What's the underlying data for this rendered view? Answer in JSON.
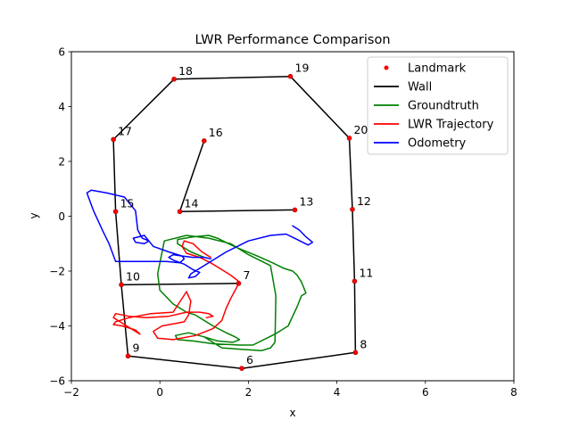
{
  "chart_data": {
    "type": "line",
    "title": "LWR Performance Comparison",
    "xlabel": "x",
    "ylabel": "y",
    "xlim": [
      -2,
      8
    ],
    "ylim": [
      -6,
      6
    ],
    "x_ticks": [
      "−2",
      "0",
      "2",
      "4",
      "6",
      "8"
    ],
    "y_ticks": [
      "−6",
      "−4",
      "−2",
      "0",
      "2",
      "4",
      "6"
    ],
    "grid": false,
    "legend_position": "top-right",
    "legend": [
      {
        "label": "Landmark",
        "color": "#ff0000",
        "kind": "marker"
      },
      {
        "label": "Wall",
        "color": "#000000",
        "kind": "line"
      },
      {
        "label": "Groundtruth",
        "color": "#008000",
        "kind": "line"
      },
      {
        "label": "LWR Trajectory",
        "color": "#ff0000",
        "kind": "line"
      },
      {
        "label": "Odometry",
        "color": "#0000ff",
        "kind": "line"
      }
    ],
    "landmarks": [
      {
        "id": "6",
        "x": 1.85,
        "y": -5.55
      },
      {
        "id": "7",
        "x": 1.78,
        "y": -2.45
      },
      {
        "id": "8",
        "x": 4.42,
        "y": -4.97
      },
      {
        "id": "9",
        "x": -0.72,
        "y": -5.1
      },
      {
        "id": "10",
        "x": -0.87,
        "y": -2.5
      },
      {
        "id": "11",
        "x": 4.4,
        "y": -2.37
      },
      {
        "id": "12",
        "x": 4.35,
        "y": 0.25
      },
      {
        "id": "13",
        "x": 3.05,
        "y": 0.23
      },
      {
        "id": "14",
        "x": 0.45,
        "y": 0.17
      },
      {
        "id": "15",
        "x": -1.0,
        "y": 0.17
      },
      {
        "id": "16",
        "x": 1.0,
        "y": 2.75
      },
      {
        "id": "17",
        "x": -1.05,
        "y": 2.8
      },
      {
        "id": "18",
        "x": 0.32,
        "y": 5.0
      },
      {
        "id": "19",
        "x": 2.95,
        "y": 5.1
      },
      {
        "id": "20",
        "x": 4.28,
        "y": 2.85
      }
    ],
    "walls": [
      [
        "17",
        "18",
        "19",
        "20",
        "12",
        "11",
        "8",
        "6",
        "9",
        "10",
        "15",
        "17"
      ],
      [
        "14",
        "16"
      ],
      [
        "14",
        "13"
      ],
      [
        "10",
        "7"
      ]
    ],
    "series": [
      {
        "name": "Groundtruth",
        "color": "#008000",
        "x": [
          1.0,
          0.7,
          0.4,
          0.4,
          0.75,
          1.1,
          1.3,
          1.55,
          1.75,
          2.2,
          2.55,
          2.8,
          3.0,
          3.1,
          3.2,
          3.3,
          3.2,
          3.1,
          2.9,
          2.6,
          2.1,
          1.8,
          1.2,
          0.75,
          0.4,
          0.35,
          0.65,
          1.0,
          1.4,
          1.8,
          2.3,
          2.5,
          2.6,
          2.62,
          2.5,
          2.0,
          1.6,
          1.1,
          0.6,
          0.1,
          -0.05,
          0.0,
          0.3,
          0.6,
          0.8,
          1.0,
          1.2,
          1.5,
          1.7,
          1.8,
          1.65,
          1.3,
          1.0
        ],
        "y": [
          -1.5,
          -1.3,
          -1.0,
          -0.85,
          -0.75,
          -0.7,
          -0.8,
          -1.0,
          -1.15,
          -1.45,
          -1.7,
          -1.9,
          -2.0,
          -2.15,
          -2.4,
          -2.8,
          -2.9,
          -3.3,
          -4.0,
          -4.3,
          -4.7,
          -4.7,
          -4.65,
          -4.55,
          -4.5,
          -4.35,
          -4.25,
          -4.4,
          -4.8,
          -4.85,
          -4.9,
          -4.8,
          -4.6,
          -2.9,
          -1.8,
          -1.4,
          -1.0,
          -0.8,
          -0.7,
          -0.9,
          -2.1,
          -2.7,
          -3.2,
          -3.5,
          -3.6,
          -3.8,
          -4.0,
          -4.25,
          -4.4,
          -4.5,
          -4.6,
          -4.55,
          -4.4
        ]
      },
      {
        "name": "LWR Trajectory",
        "color": "#ff0000",
        "x": [
          1.15,
          0.95,
          0.75,
          0.55,
          0.5,
          0.6,
          0.9,
          1.15,
          1.35,
          1.6,
          1.8,
          1.75,
          1.6,
          1.5,
          1.4,
          1.2,
          0.8,
          0.3,
          -0.05,
          -0.15,
          0.05,
          0.4,
          0.55,
          0.65,
          0.7,
          0.6,
          0.3,
          -0.2,
          -0.7,
          -1.0,
          -1.05,
          -0.85,
          -0.55,
          -0.45,
          -0.6,
          -0.85,
          -1.05,
          -1.0,
          -0.7,
          -0.3,
          0.2,
          0.6,
          0.9,
          1.1,
          1.2,
          1.05
        ],
        "y": [
          -1.5,
          -1.3,
          -1.0,
          -0.9,
          -1.1,
          -1.35,
          -1.5,
          -1.7,
          -1.9,
          -2.15,
          -2.4,
          -2.55,
          -3.0,
          -3.35,
          -3.8,
          -4.1,
          -4.35,
          -4.5,
          -4.45,
          -4.2,
          -4.0,
          -3.9,
          -3.85,
          -3.6,
          -3.1,
          -2.75,
          -3.5,
          -3.55,
          -3.7,
          -3.85,
          -3.95,
          -4.0,
          -4.15,
          -4.3,
          -4.15,
          -3.9,
          -3.7,
          -3.55,
          -3.65,
          -3.7,
          -3.65,
          -3.5,
          -3.5,
          -3.55,
          -3.65,
          -3.7
        ]
      },
      {
        "name": "Odometry",
        "color": "#0000ff",
        "x": [
          3.0,
          3.15,
          3.3,
          3.45,
          3.35,
          3.1,
          2.85,
          2.5,
          2.0,
          1.5,
          1.0,
          0.7,
          0.65,
          0.8,
          0.9,
          0.75,
          0.55,
          0.3,
          0.2,
          0.3,
          0.5,
          0.55,
          0.45,
          0.15,
          -0.3,
          -0.6,
          -1.0,
          -1.15,
          -1.3,
          -1.5,
          -1.65,
          -1.55,
          -1.2,
          -0.8,
          -0.55,
          -0.5,
          -0.4,
          -0.25,
          -0.35,
          -0.55,
          -0.6,
          -0.35,
          -0.15,
          0.2,
          0.5,
          0.75,
          1.0,
          1.15
        ],
        "y": [
          -0.35,
          -0.5,
          -0.75,
          -0.95,
          -1.05,
          -0.85,
          -0.65,
          -0.7,
          -0.9,
          -1.3,
          -1.8,
          -2.1,
          -2.25,
          -2.2,
          -2.05,
          -1.95,
          -1.75,
          -1.6,
          -1.5,
          -1.4,
          -1.45,
          -1.55,
          -1.7,
          -1.65,
          -1.65,
          -1.65,
          -1.65,
          -1.0,
          -0.5,
          0.2,
          0.85,
          0.95,
          0.85,
          0.7,
          0.2,
          -0.5,
          -0.8,
          -0.9,
          -1.0,
          -0.95,
          -0.8,
          -0.7,
          -1.1,
          -1.3,
          -1.45,
          -1.5,
          -1.5,
          -1.55
        ]
      }
    ]
  }
}
